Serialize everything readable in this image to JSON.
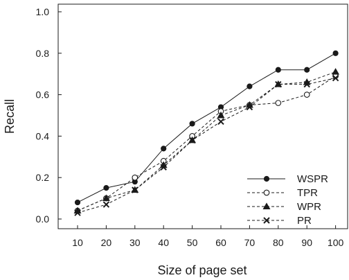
{
  "chart_data": {
    "type": "line",
    "xlabel": "Size of page set",
    "ylabel": "Recall",
    "categories": [
      10,
      20,
      30,
      40,
      50,
      60,
      70,
      80,
      90,
      100
    ],
    "ylim": [
      0.0,
      1.0
    ],
    "yticks": [
      "0.0",
      "0.2",
      "0.4",
      "0.6",
      "0.8",
      "1.0"
    ],
    "grid": false,
    "legend_position": "bottom-right",
    "series": [
      {
        "name": "WSPR",
        "marker": "filled-circle",
        "line": "solid",
        "color": "#1a1a1a",
        "values": [
          0.08,
          0.15,
          0.18,
          0.34,
          0.46,
          0.54,
          0.64,
          0.72,
          0.72,
          0.8
        ]
      },
      {
        "name": "TPR",
        "marker": "open-circle",
        "line": "dashed",
        "color": "#1a1a1a",
        "values": [
          0.04,
          0.1,
          0.2,
          0.28,
          0.4,
          0.52,
          0.55,
          0.56,
          0.6,
          0.69
        ]
      },
      {
        "name": "WPR",
        "marker": "filled-triangle",
        "line": "dashed",
        "color": "#1a1a1a",
        "values": [
          0.04,
          0.1,
          0.14,
          0.26,
          0.38,
          0.5,
          0.55,
          0.65,
          0.66,
          0.71
        ]
      },
      {
        "name": "PR",
        "marker": "x",
        "line": "dashed",
        "color": "#1a1a1a",
        "values": [
          0.03,
          0.07,
          0.14,
          0.25,
          0.38,
          0.47,
          0.54,
          0.65,
          0.65,
          0.68
        ]
      }
    ]
  }
}
